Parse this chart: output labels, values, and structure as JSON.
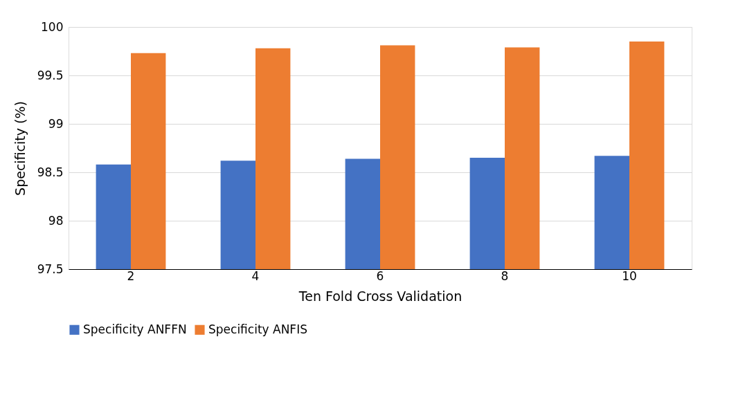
{
  "chart_data": {
    "type": "bar",
    "xlabel": "Ten Fold Cross Validation",
    "ylabel": "Specificity (%)",
    "categories": [
      "2",
      "4",
      "6",
      "8",
      "10"
    ],
    "series": [
      {
        "name": "Specificity ANFFN",
        "color": "#4472c4",
        "values": [
          98.58,
          98.62,
          98.64,
          98.65,
          98.67
        ]
      },
      {
        "name": "Specificity ANFIS",
        "color": "#ed7d31",
        "values": [
          99.73,
          99.78,
          99.81,
          99.79,
          99.85
        ]
      }
    ],
    "ylim": [
      97.5,
      100
    ],
    "yticks": [
      97.5,
      98,
      98.5,
      99,
      99.5,
      100
    ],
    "grid": "y",
    "legend": "bottom"
  }
}
